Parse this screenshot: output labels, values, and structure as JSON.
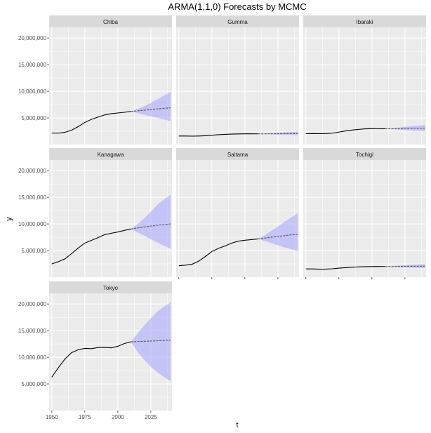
{
  "chart_data": {
    "type": "line",
    "title": "ARMA(1,1,0) Forecasts by MCMC",
    "xlabel": "t",
    "ylabel": "y",
    "xlim": [
      1948,
      2041
    ],
    "ylim": [
      0,
      22000000
    ],
    "x_ticks": [
      1950,
      1975,
      2000,
      2025
    ],
    "x_tick_labels": [
      "1950",
      "1975",
      "2000",
      "2025"
    ],
    "y_ticks": [
      5000000,
      10000000,
      15000000,
      20000000
    ],
    "y_tick_labels": [
      "5,000,000",
      "10,000,000",
      "15,000,000",
      "20,000,000"
    ],
    "grid": true,
    "colors": {
      "panel_bg": "#ebebeb",
      "strip_bg": "#d9d9d9",
      "grid": "#ffffff",
      "line": "#000000",
      "forecast_line": "#555555",
      "band": "#a3a3ff"
    },
    "panels": [
      {
        "name": "Chiba",
        "x": [
          1950,
          1955,
          1960,
          1965,
          1970,
          1975,
          1980,
          1985,
          1990,
          1995,
          2000,
          2005,
          2010
        ],
        "values": [
          2140000,
          2140000,
          2310000,
          2700000,
          3370000,
          4150000,
          4740000,
          5150000,
          5560000,
          5800000,
          5930000,
          6060000,
          6220000
        ],
        "forecast_x": [
          2010,
          2015,
          2020,
          2025,
          2030,
          2035,
          2040
        ],
        "forecast_mean": [
          6220000,
          6330000,
          6450000,
          6580000,
          6700000,
          6800000,
          6900000
        ],
        "forecast_lower": [
          6220000,
          5900000,
          5600000,
          5300000,
          5000000,
          4700000,
          4400000
        ],
        "forecast_upper": [
          6220000,
          6700000,
          7200000,
          7800000,
          8500000,
          9200000,
          9900000
        ]
      },
      {
        "name": "Gumma",
        "x": [
          1950,
          1955,
          1960,
          1965,
          1970,
          1975,
          1980,
          1985,
          1990,
          1995,
          2000,
          2005,
          2010
        ],
        "values": [
          1600000,
          1610000,
          1580000,
          1610000,
          1660000,
          1760000,
          1850000,
          1920000,
          1970000,
          2000000,
          2020000,
          2020000,
          2010000
        ],
        "forecast_x": [
          2010,
          2015,
          2020,
          2025,
          2030,
          2035,
          2040
        ],
        "forecast_mean": [
          2010000,
          2020000,
          2030000,
          2040000,
          2050000,
          2060000,
          2070000
        ],
        "forecast_lower": [
          2010000,
          1950000,
          1900000,
          1850000,
          1820000,
          1790000,
          1760000
        ],
        "forecast_upper": [
          2010000,
          2080000,
          2150000,
          2220000,
          2290000,
          2360000,
          2420000
        ]
      },
      {
        "name": "Ibaraki",
        "x": [
          1950,
          1955,
          1960,
          1965,
          1970,
          1975,
          1980,
          1985,
          1990,
          1995,
          2000,
          2005,
          2010
        ],
        "values": [
          2040000,
          2060000,
          2050000,
          2060000,
          2140000,
          2340000,
          2560000,
          2730000,
          2850000,
          2960000,
          2990000,
          2980000,
          2970000
        ],
        "forecast_x": [
          2010,
          2015,
          2020,
          2025,
          2030,
          2035,
          2040
        ],
        "forecast_mean": [
          2970000,
          2990000,
          3010000,
          3030000,
          3050000,
          3070000,
          3090000
        ],
        "forecast_lower": [
          2970000,
          2880000,
          2800000,
          2720000,
          2650000,
          2580000,
          2520000
        ],
        "forecast_upper": [
          2970000,
          3080000,
          3200000,
          3320000,
          3440000,
          3560000,
          3680000
        ]
      },
      {
        "name": "Kanagawa",
        "x": [
          1950,
          1955,
          1960,
          1965,
          1970,
          1975,
          1980,
          1985,
          1990,
          1995,
          2000,
          2005,
          2010
        ],
        "values": [
          2490000,
          2920000,
          3440000,
          4430000,
          5470000,
          6400000,
          6920000,
          7430000,
          7980000,
          8250000,
          8490000,
          8790000,
          9050000
        ],
        "forecast_x": [
          2010,
          2015,
          2020,
          2025,
          2030,
          2035,
          2040
        ],
        "forecast_mean": [
          9050000,
          9250000,
          9450000,
          9600000,
          9750000,
          9880000,
          10000000
        ],
        "forecast_lower": [
          9050000,
          8400000,
          7800000,
          7100000,
          6500000,
          5900000,
          5300000
        ],
        "forecast_upper": [
          9050000,
          10000000,
          11000000,
          12300000,
          13600000,
          14600000,
          15500000
        ]
      },
      {
        "name": "Saitama",
        "x": [
          1950,
          1955,
          1960,
          1965,
          1970,
          1975,
          1980,
          1985,
          1990,
          1995,
          2000,
          2005,
          2010
        ],
        "values": [
          2150000,
          2260000,
          2430000,
          3010000,
          3870000,
          4820000,
          5420000,
          5860000,
          6410000,
          6760000,
          6940000,
          7050000,
          7190000
        ],
        "forecast_x": [
          2010,
          2015,
          2020,
          2025,
          2030,
          2035,
          2040
        ],
        "forecast_mean": [
          7190000,
          7350000,
          7500000,
          7650000,
          7800000,
          7950000,
          8050000
        ],
        "forecast_lower": [
          7190000,
          6800000,
          6400000,
          6000000,
          5600000,
          5250000,
          4900000
        ],
        "forecast_upper": [
          7190000,
          7900000,
          8700000,
          9500000,
          10400000,
          11200000,
          12000000
        ]
      },
      {
        "name": "Tochigi",
        "x": [
          1950,
          1955,
          1960,
          1965,
          1970,
          1975,
          1980,
          1985,
          1990,
          1995,
          2000,
          2005,
          2010
        ],
        "values": [
          1550000,
          1550000,
          1510000,
          1520000,
          1580000,
          1700000,
          1790000,
          1870000,
          1940000,
          1980000,
          2000000,
          2020000,
          2010000
        ],
        "forecast_x": [
          2010,
          2015,
          2020,
          2025,
          2030,
          2035,
          2040
        ],
        "forecast_mean": [
          2010000,
          2020000,
          2030000,
          2040000,
          2050000,
          2060000,
          2070000
        ],
        "forecast_lower": [
          2010000,
          1940000,
          1880000,
          1830000,
          1790000,
          1760000,
          1730000
        ],
        "forecast_upper": [
          2010000,
          2090000,
          2170000,
          2250000,
          2330000,
          2400000,
          2460000
        ]
      },
      {
        "name": "Tokyo",
        "x": [
          1950,
          1955,
          1960,
          1965,
          1970,
          1975,
          1980,
          1985,
          1990,
          1995,
          2000,
          2005,
          2010
        ],
        "values": [
          6280000,
          8040000,
          9680000,
          10870000,
          11410000,
          11670000,
          11620000,
          11830000,
          11860000,
          11770000,
          12060000,
          12580000,
          12900000
        ],
        "forecast_x": [
          2010,
          2015,
          2020,
          2025,
          2030,
          2035,
          2040
        ],
        "forecast_mean": [
          12900000,
          12950000,
          13000000,
          13050000,
          13100000,
          13150000,
          13200000
        ],
        "forecast_lower": [
          12900000,
          11000000,
          9500000,
          8200000,
          7200000,
          6300000,
          5500000
        ],
        "forecast_upper": [
          12900000,
          14500000,
          16000000,
          17300000,
          18600000,
          19500000,
          20300000
        ]
      }
    ]
  }
}
